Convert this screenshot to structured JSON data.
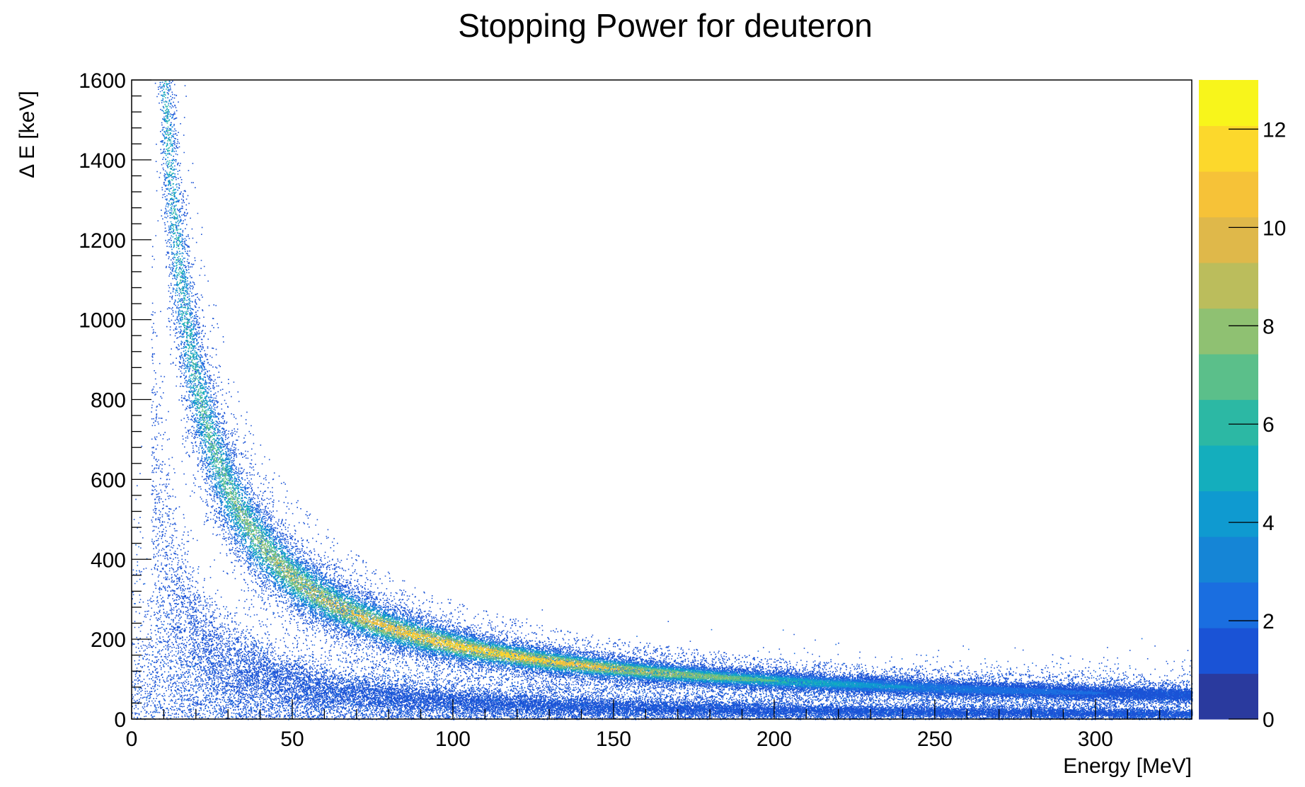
{
  "chart_data": {
    "type": "heatmap",
    "title": "Stopping Power for deuteron",
    "xlabel": "Energy [MeV]",
    "ylabel": "Δ E [keV]",
    "xlim": [
      0,
      330
    ],
    "ylim": [
      0,
      1600
    ],
    "x_ticks": [
      "0",
      "50",
      "100",
      "150",
      "200",
      "250",
      "300"
    ],
    "y_ticks": [
      "0",
      "200",
      "400",
      "600",
      "800",
      "1000",
      "1200",
      "1400",
      "1600"
    ],
    "colorbar": {
      "range": [
        0,
        13
      ],
      "ticks": [
        "0",
        "2",
        "4",
        "6",
        "8",
        "10",
        "12"
      ]
    },
    "colorscale": [
      "#2a3a9e",
      "#1a53d6",
      "#1a6ee0",
      "#1585d6",
      "#0f9ad0",
      "#14aebd",
      "#2cb8a4",
      "#5bbf8a",
      "#8fc172",
      "#bbbd5c",
      "#dfb84a",
      "#f6c238",
      "#fcd82c",
      "#f8f51b"
    ],
    "bands": [
      {
        "name": "",
        "k": 14160,
        "pow": 0.94,
        "x_range": [
          3,
          330
        ],
        "peak_count": 12
      },
      {
        "name": "",
        "k": 4200,
        "pow": 0.98,
        "x_range": [
          6,
          330
        ],
        "peak_count": 2
      }
    ],
    "grid": false,
    "legend": "none"
  }
}
